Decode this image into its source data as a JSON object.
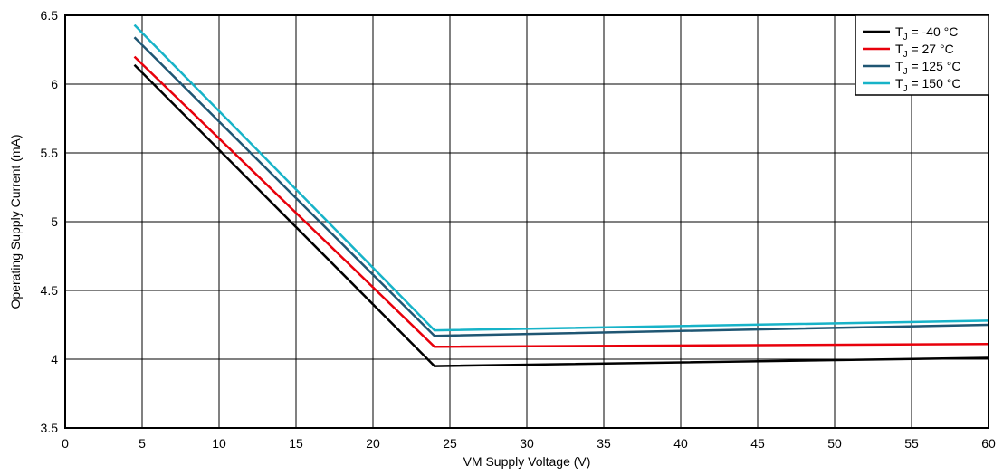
{
  "chart_data": {
    "type": "line",
    "xlabel": "VM Supply Voltage (V)",
    "ylabel": "Operating Supply Current (mA)",
    "xlim": [
      0,
      60
    ],
    "ylim": [
      3.5,
      6.5
    ],
    "xticks": [
      0,
      5,
      10,
      15,
      20,
      25,
      30,
      35,
      40,
      45,
      50,
      55,
      60
    ],
    "yticks": [
      3.5,
      4,
      4.5,
      5,
      5.5,
      6,
      6.5
    ],
    "xtick_labels": [
      "0",
      "5",
      "10",
      "15",
      "20",
      "25",
      "30",
      "35",
      "40",
      "45",
      "50",
      "55",
      "60"
    ],
    "ytick_labels": [
      "3.5",
      "4",
      "4.5",
      "5",
      "5.5",
      "6",
      "6.5"
    ],
    "grid": true,
    "legend_position": "top-right",
    "series": [
      {
        "name": "T_J = -40 °C",
        "legend_base": "T",
        "legend_sub": "J",
        "legend_rest": " = -40 °C",
        "color": "#000000",
        "x": [
          4.5,
          24,
          60
        ],
        "y": [
          6.14,
          3.95,
          4.01
        ]
      },
      {
        "name": "T_J = 27 °C",
        "legend_base": "T",
        "legend_sub": "J",
        "legend_rest": " = 27 °C",
        "color": "#e8000b",
        "x": [
          4.5,
          24,
          60
        ],
        "y": [
          6.2,
          4.09,
          4.11
        ]
      },
      {
        "name": "T_J = 125 °C",
        "legend_base": "T",
        "legend_sub": "J",
        "legend_rest": " = 125 °C",
        "color": "#1f5673",
        "x": [
          4.5,
          24,
          60
        ],
        "y": [
          6.34,
          4.17,
          4.25
        ]
      },
      {
        "name": "T_J = 150 °C",
        "legend_base": "T",
        "legend_sub": "J",
        "legend_rest": " = 150 °C",
        "color": "#17b3c8",
        "x": [
          4.5,
          24,
          60
        ],
        "y": [
          6.43,
          4.21,
          4.28
        ]
      }
    ]
  }
}
